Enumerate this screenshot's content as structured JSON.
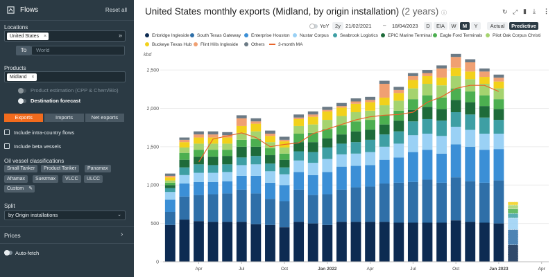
{
  "sidebar": {
    "title": "Flows",
    "reset_label": "Reset all",
    "locations_label": "Locations",
    "location_chip": "United States",
    "to_label": "To",
    "to_placeholder": "World",
    "products_label": "Products",
    "product_chip": "Midland",
    "product_estimation_label": "Product estimation (CPP & Chem/Bio)",
    "destination_forecast_label": "Destination forecast",
    "flow_tabs": [
      "Exports",
      "Imports",
      "Net exports"
    ],
    "active_flow_tab": "Exports",
    "intra_country_label": "Include intra-country flows",
    "beta_vessels_label": "Include beta vessels",
    "vessel_class_label": "Oil vessel classifications",
    "vessel_tags": [
      "Small Tanker",
      "Product Tanker",
      "Panamax",
      "Aframax",
      "Suezmax",
      "VLCC",
      "ULCC",
      "Custom"
    ],
    "split_label": "Split",
    "split_value": "by Origin installations",
    "prices_label": "Prices",
    "autofetch_label": "Auto-fetch"
  },
  "header": {
    "title": "United States monthly exports (Midland, by origin installation)",
    "subtitle": "(2 years)"
  },
  "controls": {
    "yoy_label": "YoY",
    "range_label": "2y",
    "date_from": "21/02/2021",
    "date_sep": "–",
    "date_to": "18/04/2023",
    "granularity": [
      "D",
      "EIA",
      "W",
      "M",
      "Y"
    ],
    "active_granularity": "M",
    "mode_actual": "Actual",
    "mode_predictive": "Predictive",
    "active_mode": "Predictive"
  },
  "chart_data": {
    "type": "bar",
    "unit_label": "kbd",
    "ylim": [
      0,
      2600
    ],
    "yticks": [
      0,
      500,
      1000,
      1500,
      2000,
      2500
    ],
    "xtick_labels": [
      {
        "index": 2,
        "label": "Apr"
      },
      {
        "index": 5,
        "label": "Jul"
      },
      {
        "index": 8,
        "label": "Oct"
      },
      {
        "index": 11,
        "label": "Jan 2022"
      },
      {
        "index": 14,
        "label": "Apr"
      },
      {
        "index": 17,
        "label": "Jul"
      },
      {
        "index": 20,
        "label": "Oct"
      },
      {
        "index": 23,
        "label": "Jan 2023"
      },
      {
        "index": 26,
        "label": "Apr"
      }
    ],
    "months": [
      "Feb 2021",
      "Mar 2021",
      "Apr 2021",
      "May 2021",
      "Jun 2021",
      "Jul 2021",
      "Aug 2021",
      "Sep 2021",
      "Oct 2021",
      "Nov 2021",
      "Dec 2021",
      "Jan 2022",
      "Feb 2022",
      "Mar 2022",
      "Apr 2022",
      "May 2022",
      "Jun 2022",
      "Jul 2022",
      "Aug 2022",
      "Sep 2022",
      "Oct 2022",
      "Nov 2022",
      "Dec 2022",
      "Jan 2023",
      "Feb 2023",
      "Mar 2023",
      "Apr 2023"
    ],
    "series": [
      {
        "name": "Enbridge Ingleside",
        "color": "#0d2b52",
        "values": [
          480,
          550,
          530,
          520,
          520,
          520,
          490,
          480,
          450,
          520,
          500,
          480,
          520,
          520,
          520,
          520,
          510,
          510,
          510,
          510,
          540,
          520,
          510,
          500,
          0,
          0,
          0
        ]
      },
      {
        "name": "South Texas Gateway",
        "color": "#2f6fa8",
        "values": [
          170,
          300,
          340,
          360,
          370,
          420,
          400,
          340,
          340,
          420,
          370,
          400,
          420,
          450,
          460,
          500,
          520,
          530,
          560,
          520,
          560,
          530,
          520,
          560,
          0,
          0,
          0
        ]
      },
      {
        "name": "Enterprise Houston",
        "color": "#3b8fd6",
        "values": [
          160,
          170,
          170,
          160,
          160,
          180,
          230,
          210,
          210,
          230,
          260,
          290,
          300,
          280,
          280,
          310,
          330,
          390,
          390,
          380,
          430,
          450,
          430,
          410,
          0,
          0,
          0
        ]
      },
      {
        "name": "Nustar Corpus",
        "color": "#9ad1f5",
        "values": [
          100,
          110,
          120,
          120,
          120,
          140,
          150,
          150,
          140,
          150,
          160,
          170,
          160,
          160,
          170,
          170,
          180,
          220,
          210,
          230,
          230,
          220,
          210,
          200,
          0,
          0,
          0
        ]
      },
      {
        "name": "Seabrook Logistics",
        "color": "#3e9fa4",
        "values": [
          50,
          100,
          110,
          100,
          100,
          100,
          110,
          100,
          90,
          120,
          140,
          150,
          140,
          150,
          160,
          160,
          160,
          180,
          190,
          200,
          190,
          200,
          210,
          180,
          0,
          0,
          0
        ]
      },
      {
        "name": "EPIC Marine Terminal",
        "color": "#1e6b3a",
        "values": [
          40,
          100,
          100,
          110,
          110,
          140,
          120,
          110,
          100,
          120,
          130,
          120,
          120,
          140,
          130,
          130,
          140,
          150,
          160,
          150,
          160,
          160,
          150,
          140,
          0,
          0,
          0
        ]
      },
      {
        "name": "Eagle Ford Terminals",
        "color": "#4caf50",
        "values": [
          30,
          90,
          90,
          90,
          80,
          90,
          100,
          90,
          80,
          110,
          120,
          120,
          120,
          130,
          130,
          120,
          130,
          140,
          150,
          150,
          150,
          140,
          140,
          130,
          0,
          0,
          0
        ]
      },
      {
        "name": "Pilot Oak Corpus Christi",
        "color": "#a5d36f",
        "values": [
          30,
          70,
          80,
          80,
          80,
          90,
          100,
          80,
          80,
          100,
          110,
          120,
          120,
          120,
          120,
          130,
          130,
          140,
          150,
          160,
          160,
          160,
          150,
          140,
          0,
          0,
          0
        ]
      },
      {
        "name": "Buckeye Texas Hub",
        "color": "#f2d11b",
        "values": [
          40,
          70,
          80,
          80,
          80,
          90,
          100,
          80,
          80,
          90,
          100,
          110,
          110,
          110,
          110,
          100,
          100,
          110,
          100,
          100,
          110,
          100,
          90,
          90,
          0,
          0,
          0
        ]
      },
      {
        "name": "Flint Hills Ingleside",
        "color": "#f0a072",
        "values": [
          20,
          30,
          40,
          40,
          30,
          100,
          30,
          30,
          20,
          20,
          30,
          20,
          20,
          30,
          30,
          180,
          40,
          50,
          40,
          120,
          140,
          120,
          70,
          50,
          0,
          0,
          0
        ]
      },
      {
        "name": "Others",
        "color": "#6b7a85",
        "values": [
          30,
          30,
          40,
          40,
          40,
          40,
          40,
          40,
          40,
          40,
          40,
          40,
          40,
          40,
          40,
          40,
          40,
          40,
          40,
          40,
          40,
          40,
          40,
          40,
          0,
          0,
          0
        ]
      }
    ],
    "predictive_bar": {
      "index": 24,
      "segments": [
        {
          "color": "#0d2b52",
          "value": 220
        },
        {
          "color": "#2f6fa8",
          "value": 200
        },
        {
          "color": "#9ad1f5",
          "value": 150
        },
        {
          "color": "#3e9fa4",
          "value": 60
        },
        {
          "color": "#4caf50",
          "value": 60
        },
        {
          "color": "#a5d36f",
          "value": 50
        },
        {
          "color": "#f2d11b",
          "value": 40
        }
      ]
    },
    "moving_average": {
      "name": "3-month MA",
      "color": "#e8642a",
      "values": [
        null,
        null,
        1300,
        1600,
        1640,
        1680,
        1620,
        1500,
        1530,
        1550,
        1670,
        1730,
        1790,
        1850,
        1890,
        1910,
        1920,
        1950,
        2080,
        2150,
        2260,
        2300,
        2300,
        2220,
        null,
        null,
        null
      ]
    }
  }
}
